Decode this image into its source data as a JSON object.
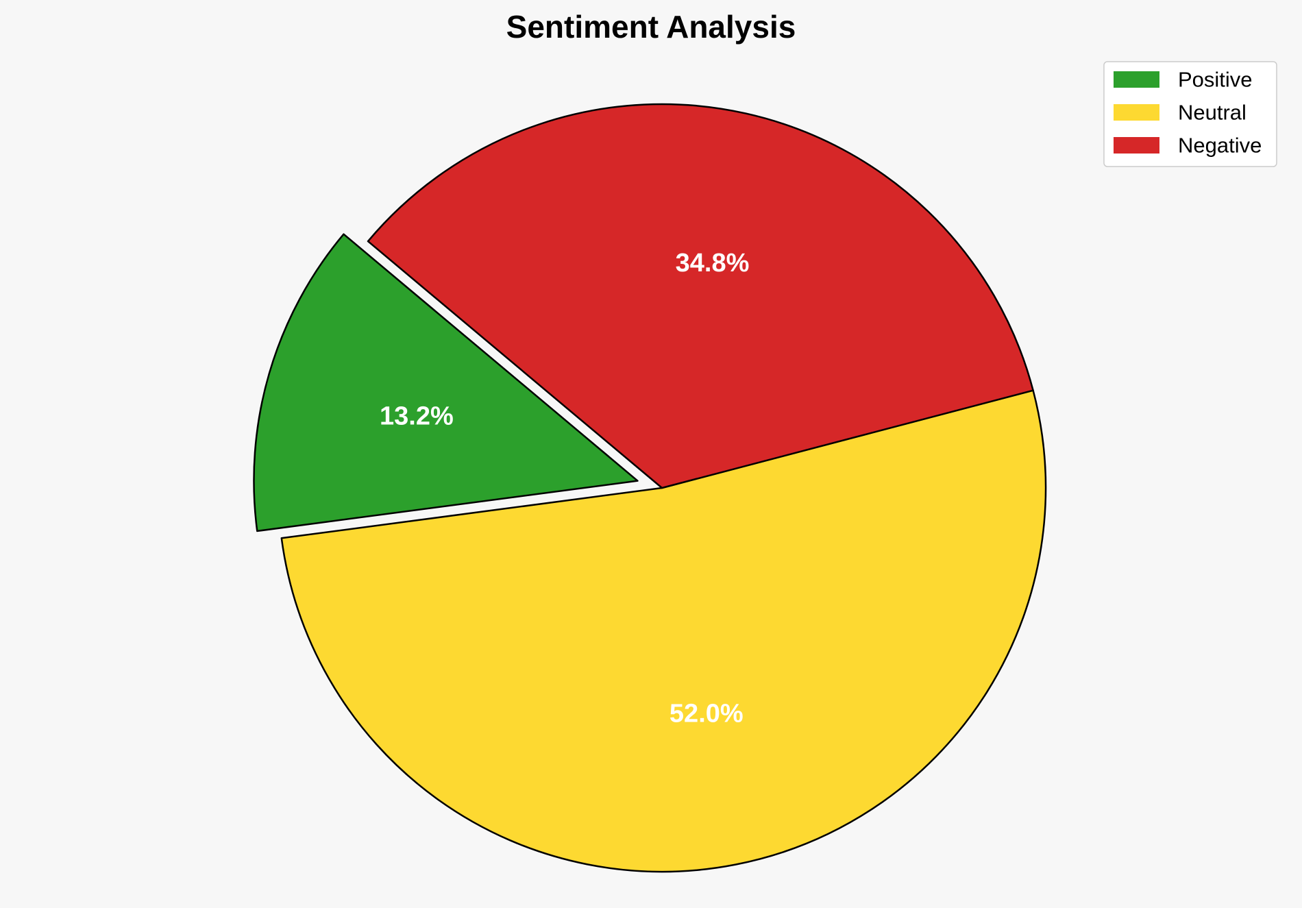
{
  "chart_data": {
    "type": "pie",
    "title": "Sentiment Analysis",
    "categories": [
      "Positive",
      "Neutral",
      "Negative"
    ],
    "values": [
      13.2,
      52.0,
      34.8
    ],
    "labels": [
      "13.2%",
      "52.0%",
      "34.8%"
    ],
    "colors": [
      "#2ca02c",
      "#fdd931",
      "#d62728"
    ],
    "exploded": [
      true,
      false,
      false
    ],
    "legend_position": "top-right",
    "start_angle_deg": 140,
    "direction": "counterclockwise"
  }
}
